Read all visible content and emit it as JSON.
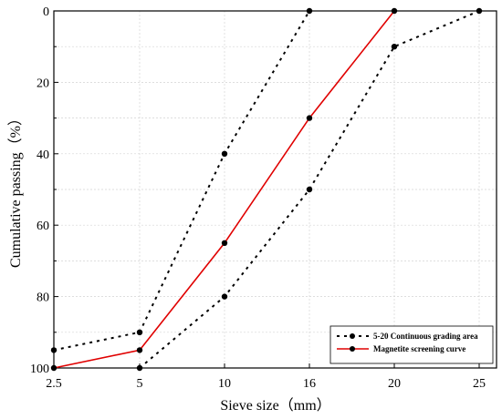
{
  "chart_data": {
    "type": "line",
    "xlabel": "Sieve size（mm）",
    "ylabel": "Cumulative passing（%）",
    "x_ticks": [
      "2.5",
      "5",
      "10",
      "16",
      "20",
      "25"
    ],
    "y_ticks": [
      "0",
      "20",
      "40",
      "60",
      "80",
      "100"
    ],
    "ylim": [
      0,
      100
    ],
    "y_inverted": true,
    "x_scale": "categorical-equal-spacing",
    "grid": true,
    "legend_position": "bottom-right",
    "series": [
      {
        "name": "5-20 Continuous grading area",
        "style": "dotted",
        "color": "#000000",
        "x": [
          "2.5",
          "5",
          "10",
          "16"
        ],
        "values": [
          95,
          90,
          40,
          0
        ]
      },
      {
        "name": "",
        "style": "dotted",
        "color": "#000000",
        "x": [
          "5",
          "10",
          "16",
          "20",
          "25"
        ],
        "values": [
          100,
          80,
          50,
          10,
          0
        ]
      },
      {
        "name": "Magnetite screening curve",
        "style": "solid",
        "color": "#e00000",
        "x": [
          "2.5",
          "5",
          "10",
          "16",
          "20"
        ],
        "values": [
          100,
          95,
          65,
          30,
          0
        ]
      }
    ]
  }
}
